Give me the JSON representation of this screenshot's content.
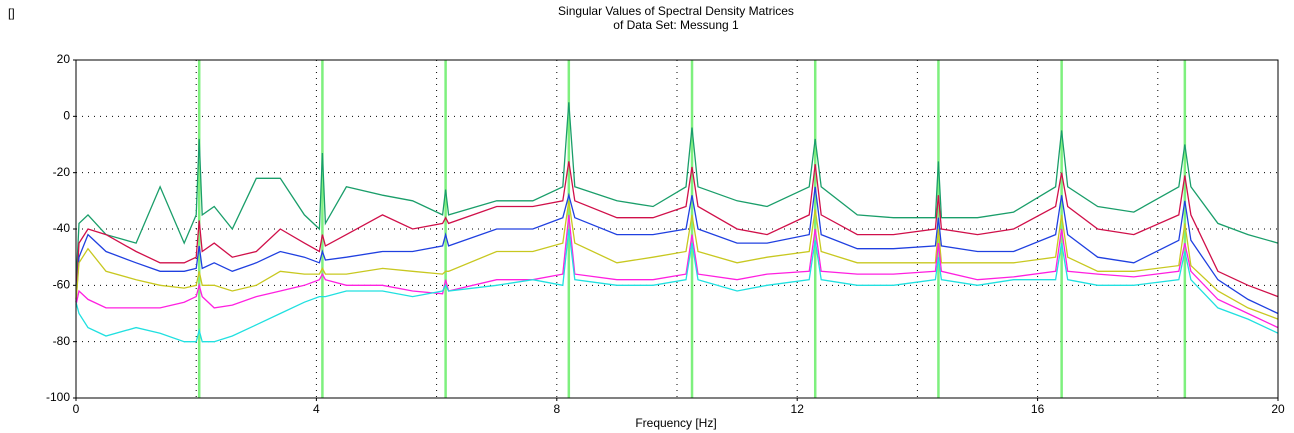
{
  "corner_label": "[]",
  "chart_data": {
    "type": "line",
    "title": "Singular Values of Spectral Density Matrices",
    "subtitle": "of Data Set: Messung 1",
    "xlabel": "Frequency [Hz]",
    "xlim": [
      0,
      20
    ],
    "xticks": [
      0,
      4,
      8,
      12,
      16,
      20
    ],
    "xminor": [
      2,
      6,
      10,
      14,
      18
    ],
    "ylim": [
      -100,
      20
    ],
    "yticks": [
      -100,
      -80,
      -60,
      -40,
      -20,
      0,
      20
    ],
    "grid": true,
    "markers": [
      2.05,
      4.1,
      6.15,
      8.2,
      10.25,
      12.3,
      14.35,
      16.4,
      18.45
    ],
    "marker_color": "#7ef07e",
    "x": [
      0,
      0.05,
      0.2,
      0.5,
      1,
      1.4,
      1.8,
      2.0,
      2.05,
      2.1,
      2.3,
      2.6,
      3.0,
      3.4,
      3.8,
      4.05,
      4.1,
      4.15,
      4.5,
      5.1,
      5.6,
      6.1,
      6.15,
      6.2,
      7.0,
      7.6,
      8.1,
      8.2,
      8.3,
      9.0,
      9.6,
      10.15,
      10.25,
      10.35,
      11.0,
      11.5,
      12.2,
      12.3,
      12.4,
      13.0,
      13.6,
      14.3,
      14.35,
      14.4,
      15.0,
      15.6,
      16.3,
      16.4,
      16.5,
      17.0,
      17.6,
      18.35,
      18.45,
      18.55,
      19.0,
      19.5,
      20
    ],
    "series": [
      {
        "color": "#1a9e6a",
        "values": [
          -60,
          -38,
          -35,
          -42,
          -45,
          -25,
          -45,
          -35,
          -8,
          -35,
          -32,
          -40,
          -22,
          -22,
          -35,
          -40,
          -13,
          -38,
          -25,
          -28,
          -30,
          -35,
          -26,
          -35,
          -30,
          -30,
          -25,
          5,
          -25,
          -30,
          -32,
          -25,
          -4,
          -25,
          -30,
          -32,
          -25,
          -8,
          -25,
          -35,
          -36,
          -36,
          -16,
          -36,
          -36,
          -34,
          -25,
          -5,
          -25,
          -32,
          -34,
          -25,
          -10,
          -25,
          -38,
          -42,
          -45
        ]
      },
      {
        "color": "#d0104a",
        "values": [
          -65,
          -45,
          -40,
          -42,
          -48,
          -52,
          -52,
          -50,
          -37,
          -48,
          -45,
          -50,
          -48,
          -40,
          -45,
          -48,
          -42,
          -46,
          -42,
          -35,
          -40,
          -38,
          -36,
          -38,
          -32,
          -32,
          -30,
          -16,
          -30,
          -36,
          -36,
          -32,
          -18,
          -32,
          -40,
          -42,
          -35,
          -17,
          -35,
          -42,
          -42,
          -40,
          -28,
          -40,
          -42,
          -40,
          -32,
          -20,
          -32,
          -40,
          -42,
          -35,
          -21,
          -35,
          -55,
          -60,
          -64
        ]
      },
      {
        "color": "#2040e0",
        "values": [
          -66,
          -50,
          -42,
          -48,
          -52,
          -55,
          -55,
          -54,
          -46,
          -54,
          -52,
          -55,
          -52,
          -48,
          -50,
          -52,
          -48,
          -51,
          -50,
          -48,
          -48,
          -46,
          -42,
          -46,
          -40,
          -40,
          -36,
          -28,
          -36,
          -42,
          -42,
          -40,
          -28,
          -40,
          -45,
          -45,
          -42,
          -25,
          -42,
          -47,
          -47,
          -46,
          -36,
          -46,
          -48,
          -48,
          -42,
          -28,
          -42,
          -50,
          -52,
          -44,
          -30,
          -44,
          -58,
          -65,
          -70
        ]
      },
      {
        "color": "#c8c820",
        "values": [
          -66,
          -52,
          -47,
          -55,
          -58,
          -60,
          -61,
          -60,
          -55,
          -60,
          -60,
          -62,
          -60,
          -55,
          -56,
          -56,
          -54,
          -56,
          -56,
          -54,
          -55,
          -56,
          -55,
          -55,
          -48,
          -48,
          -45,
          -30,
          -45,
          -52,
          -50,
          -48,
          -35,
          -48,
          -52,
          -50,
          -48,
          -33,
          -48,
          -52,
          -52,
          -52,
          -40,
          -52,
          -52,
          -52,
          -50,
          -35,
          -50,
          -55,
          -55,
          -53,
          -38,
          -53,
          -62,
          -68,
          -72
        ]
      },
      {
        "color": "#ff20e0",
        "values": [
          -67,
          -62,
          -65,
          -68,
          -68,
          -68,
          -66,
          -64,
          -60,
          -64,
          -68,
          -67,
          -64,
          -62,
          -60,
          -58,
          -56,
          -58,
          -60,
          -60,
          -62,
          -63,
          -58,
          -62,
          -58,
          -58,
          -56,
          -35,
          -56,
          -58,
          -58,
          -56,
          -42,
          -56,
          -58,
          -56,
          -55,
          -40,
          -55,
          -56,
          -56,
          -55,
          -45,
          -55,
          -58,
          -57,
          -55,
          -40,
          -55,
          -56,
          -57,
          -55,
          -45,
          -55,
          -65,
          -70,
          -75
        ]
      },
      {
        "color": "#20e0e0",
        "values": [
          -66,
          -70,
          -75,
          -78,
          -75,
          -77,
          -80,
          -80,
          -76,
          -80,
          -80,
          -78,
          -74,
          -70,
          -66,
          -64,
          -64,
          -64,
          -62,
          -62,
          -64,
          -62,
          -60,
          -62,
          -60,
          -58,
          -60,
          -40,
          -58,
          -60,
          -60,
          -58,
          -45,
          -58,
          -62,
          -60,
          -58,
          -44,
          -58,
          -60,
          -60,
          -58,
          -50,
          -58,
          -60,
          -58,
          -58,
          -45,
          -58,
          -60,
          -60,
          -58,
          -48,
          -58,
          -68,
          -72,
          -77
        ]
      }
    ]
  }
}
